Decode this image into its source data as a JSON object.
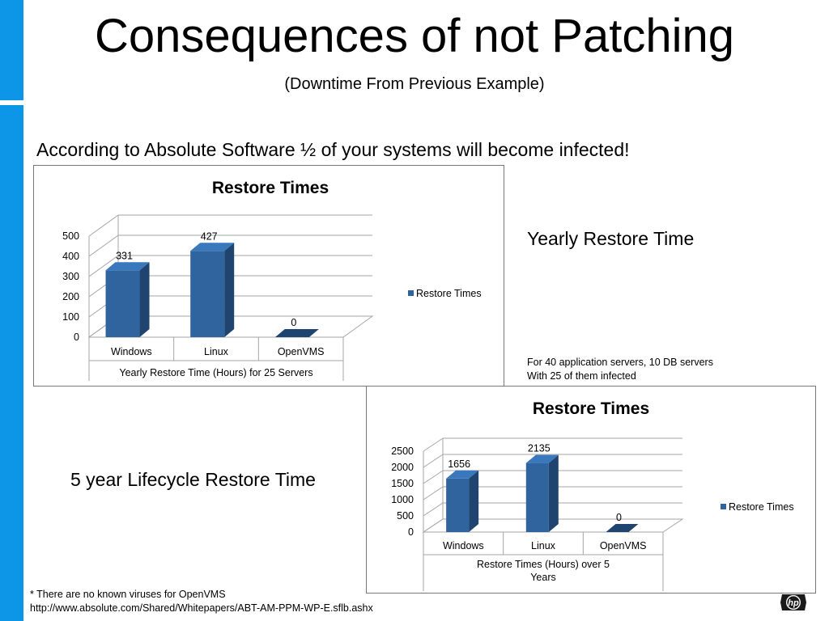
{
  "slide": {
    "title": "Consequences of not Patching",
    "subtitle": "(Downtime From Previous Example)",
    "statement": "According to Absolute Software ½ of your systems will become infected!",
    "label_yearly": "Yearly Restore Time",
    "label_five_year": "5 year Lifecycle Restore Time",
    "note_line1": "For 40 application servers, 10 DB servers",
    "note_line2": "With 25 of them infected",
    "footnote_line1": "* There are no known viruses for OpenVMS",
    "footnote_line2": "http://www.absolute.com/Shared/Whitepapers/ABT-AM-PPM-WP-E.sflb.ashx",
    "logo_text": "hp"
  },
  "colors": {
    "accent_bar": "#0d96e8",
    "bar_front": "#30649f",
    "bar_side": "#1f4470",
    "bar_top": "#3a78bd",
    "grid": "#a6a6a6"
  },
  "chart_data": [
    {
      "type": "bar",
      "title": "Restore Times",
      "categories": [
        "Windows",
        "Linux",
        "OpenVMS"
      ],
      "series": [
        {
          "name": "Restore Times",
          "values": [
            331,
            427,
            0
          ]
        }
      ],
      "data_labels": [
        "331",
        "427",
        "0"
      ],
      "xlabel": "Yearly Restore Time (Hours) for 25 Servers",
      "xlabel_lines": [
        "Yearly Restore Time (Hours) for 25 Servers"
      ],
      "ylabel": "",
      "ylim": [
        0,
        500
      ],
      "yticks": [
        "0",
        "100",
        "200",
        "300",
        "400",
        "500"
      ],
      "legend_label": "Restore Times",
      "legend_position": "right",
      "grid": true
    },
    {
      "type": "bar",
      "title": "Restore Times",
      "categories": [
        "Windows",
        "Linux",
        "OpenVMS"
      ],
      "series": [
        {
          "name": "Restore Times",
          "values": [
            1656,
            2135,
            0
          ]
        }
      ],
      "data_labels": [
        "1656",
        "2135",
        "0"
      ],
      "xlabel": "Restore Times (Hours) over 5 Years",
      "xlabel_lines": [
        "Restore Times (Hours) over 5",
        "Years"
      ],
      "ylabel": "",
      "ylim": [
        0,
        2500
      ],
      "yticks": [
        "0",
        "500",
        "1000",
        "1500",
        "2000",
        "2500"
      ],
      "legend_label": "Restore Times",
      "legend_position": "right",
      "grid": true
    }
  ]
}
